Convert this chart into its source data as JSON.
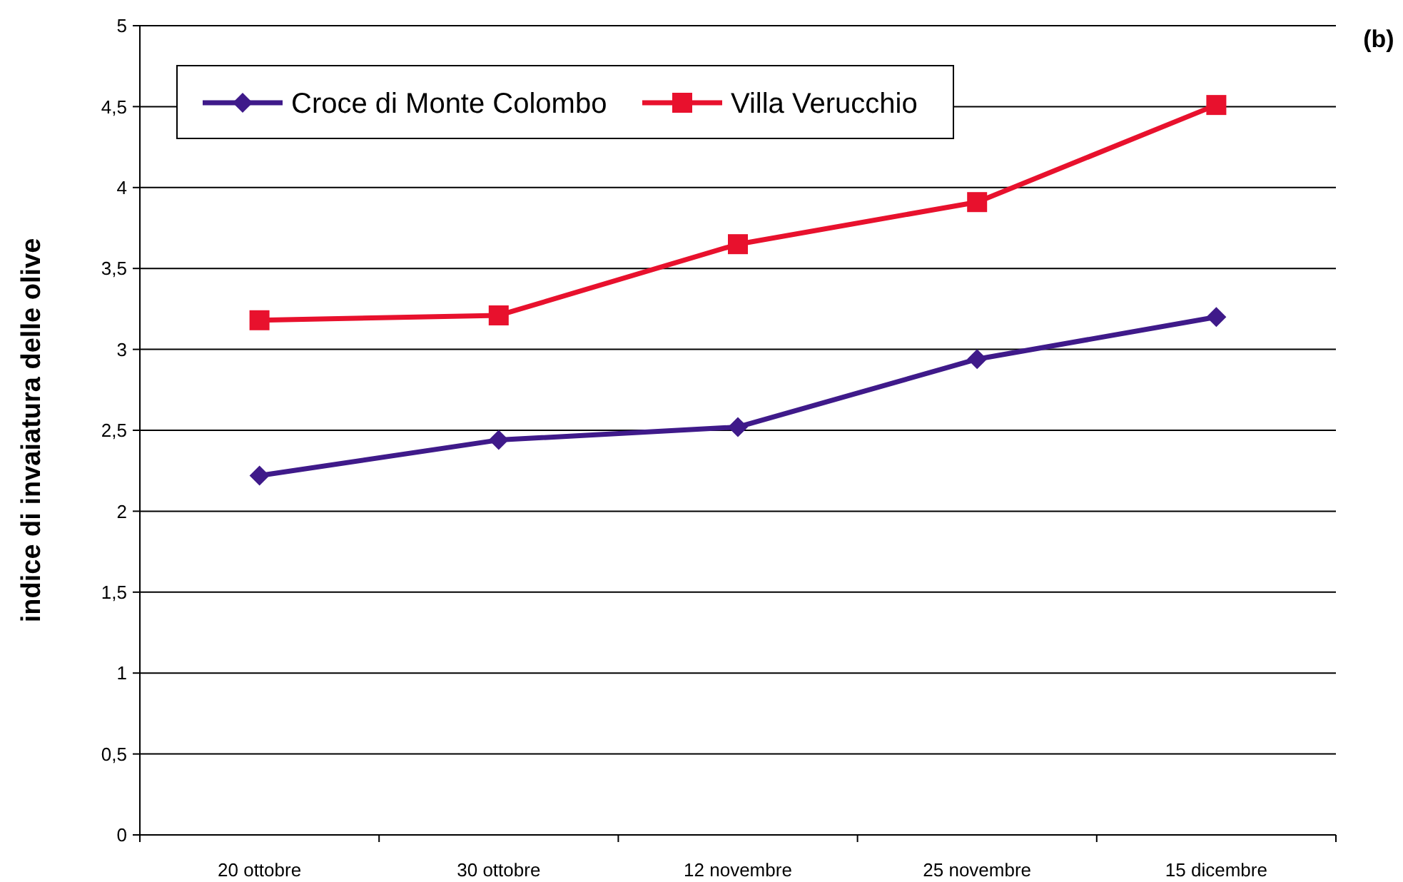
{
  "chart_data": {
    "type": "line",
    "ylabel": "indice di invaiatura delle olive",
    "annotations": [
      "(b)"
    ],
    "categories": [
      "20 ottobre",
      "30 ottobre",
      "12 novembre",
      "25 novembre",
      "15 dicembre"
    ],
    "series": [
      {
        "name": "Croce di Monte Colombo",
        "color": "#3f1a8a",
        "marker": "diamond",
        "values": [
          2.22,
          2.44,
          2.52,
          2.94,
          3.2
        ]
      },
      {
        "name": "Villa Verucchio",
        "color": "#e8112d",
        "marker": "square",
        "values": [
          3.18,
          3.21,
          3.65,
          3.91,
          4.51
        ]
      }
    ],
    "ylim": [
      0,
      5
    ],
    "yticks": [
      0,
      {
        "value": 0.5,
        "label": "0,5"
      },
      1,
      {
        "value": 1.5,
        "label": "1,5"
      },
      2,
      {
        "value": 2.5,
        "label": "2,5"
      },
      3,
      {
        "value": 3.5,
        "label": "3,5"
      },
      4,
      {
        "value": 4.5,
        "label": "4,5"
      },
      5
    ],
    "grid": "y",
    "legend": "top left",
    "line_style": "solid"
  }
}
